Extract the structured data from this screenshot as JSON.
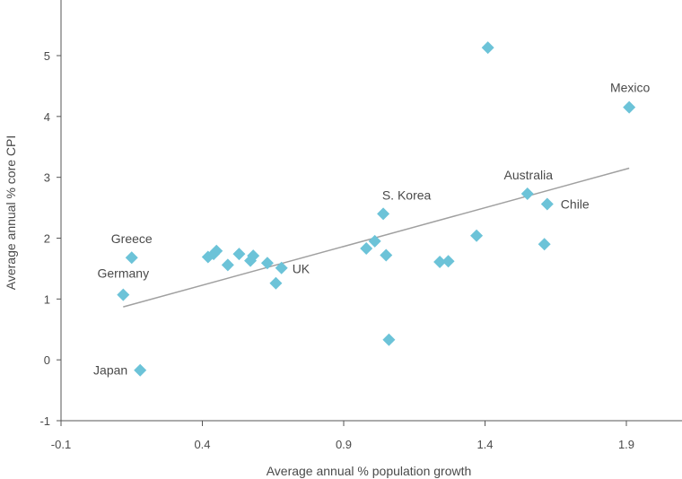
{
  "chart_data": {
    "type": "scatter",
    "title": "",
    "xlabel": "Average annual % population growth",
    "ylabel": "Average annual % core CPI",
    "xlim": [
      -0.1,
      2.1
    ],
    "ylim": [
      -1,
      5.8
    ],
    "xticks": [
      -0.1,
      0.4,
      0.9,
      1.4,
      1.9
    ],
    "xtick_labels": [
      "-0.1",
      "0.4",
      "0.9",
      "1.4",
      "1.9"
    ],
    "yticks": [
      -1,
      0,
      1,
      2,
      3,
      4,
      5
    ],
    "ytick_labels": [
      "-1",
      "0",
      "1",
      "2",
      "3",
      "4",
      "5"
    ],
    "grid": false,
    "marker": "diamond",
    "marker_color": "#6cc3d8",
    "trendline_color": "#a0a0a0",
    "axis_color": "#555555",
    "points": [
      {
        "x": 0.12,
        "y": 1.07,
        "label": "Germany"
      },
      {
        "x": 0.15,
        "y": 1.68,
        "label": "Greece"
      },
      {
        "x": 0.18,
        "y": -0.17,
        "label": "Japan"
      },
      {
        "x": 0.42,
        "y": 1.69
      },
      {
        "x": 0.44,
        "y": 1.74
      },
      {
        "x": 0.45,
        "y": 1.79
      },
      {
        "x": 0.49,
        "y": 1.56
      },
      {
        "x": 0.53,
        "y": 1.74
      },
      {
        "x": 0.57,
        "y": 1.63
      },
      {
        "x": 0.58,
        "y": 1.71
      },
      {
        "x": 0.63,
        "y": 1.59
      },
      {
        "x": 0.66,
        "y": 1.26
      },
      {
        "x": 0.68,
        "y": 1.51,
        "label": "UK"
      },
      {
        "x": 0.98,
        "y": 1.83
      },
      {
        "x": 1.01,
        "y": 1.95
      },
      {
        "x": 1.04,
        "y": 2.4,
        "label": "S. Korea"
      },
      {
        "x": 1.05,
        "y": 1.72
      },
      {
        "x": 1.06,
        "y": 0.33
      },
      {
        "x": 1.24,
        "y": 1.61
      },
      {
        "x": 1.27,
        "y": 1.62
      },
      {
        "x": 1.37,
        "y": 2.04
      },
      {
        "x": 1.41,
        "y": 5.13
      },
      {
        "x": 1.55,
        "y": 2.73,
        "label": "Australia"
      },
      {
        "x": 1.61,
        "y": 1.9
      },
      {
        "x": 1.62,
        "y": 2.56,
        "label": "Chile"
      },
      {
        "x": 1.91,
        "y": 4.15,
        "label": "Mexico"
      }
    ],
    "trendline": {
      "x": [
        0.12,
        1.91
      ],
      "y": [
        0.87,
        3.15
      ]
    }
  }
}
